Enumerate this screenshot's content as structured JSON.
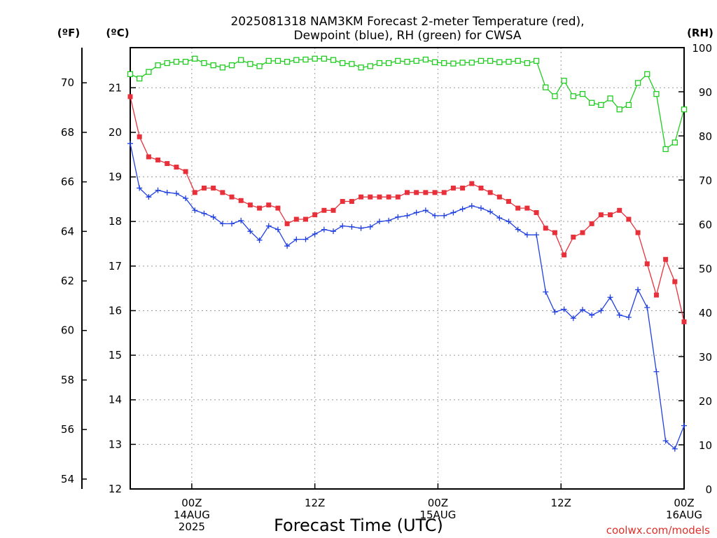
{
  "chart_data": {
    "type": "line",
    "title_line1": "2025081318 NAM3KM Forecast 2-meter Temperature (red),",
    "title_line2": "Dewpoint (blue), RH (green) for CWSA",
    "xlabel": "Forecast Time (UTC)",
    "credit": "coolwx.com/models",
    "units": {
      "fahrenheit": "(ºF)",
      "celsius": "(ºC)",
      "rh": "(RH)"
    },
    "celsius_axis": {
      "range": [
        12,
        21.9
      ],
      "ticks": [
        12,
        13,
        14,
        15,
        16,
        17,
        18,
        19,
        20,
        21
      ]
    },
    "fahrenheit_axis": {
      "range": [
        53.6,
        71.42
      ],
      "ticks": [
        54,
        56,
        58,
        60,
        62,
        64,
        66,
        68,
        70
      ]
    },
    "rh_axis": {
      "range": [
        0,
        100
      ],
      "ticks": [
        0,
        10,
        20,
        30,
        40,
        50,
        60,
        70,
        80,
        90,
        100
      ]
    },
    "x_range": [
      18,
      72
    ],
    "x_ticks": [
      {
        "hour": 24,
        "lines": [
          "00Z",
          "14AUG",
          "2025"
        ]
      },
      {
        "hour": 36,
        "lines": [
          "12Z"
        ]
      },
      {
        "hour": 48,
        "lines": [
          "00Z",
          "15AUG"
        ]
      },
      {
        "hour": 60,
        "lines": [
          "12Z"
        ]
      },
      {
        "hour": 72,
        "lines": [
          "00Z",
          "16AUG"
        ]
      }
    ],
    "grid": true,
    "series": [
      {
        "name": "Temperature",
        "axis": "celsius",
        "color": "#e8303a",
        "marker": "filled-square",
        "values": [
          20.8,
          19.9,
          19.45,
          19.38,
          19.3,
          19.22,
          19.12,
          18.65,
          18.75,
          18.75,
          18.65,
          18.55,
          18.47,
          18.37,
          18.3,
          18.37,
          18.3,
          17.95,
          18.05,
          18.05,
          18.15,
          18.25,
          18.25,
          18.45,
          18.45,
          18.55,
          18.55,
          18.55,
          18.55,
          18.55,
          18.65,
          18.65,
          18.65,
          18.65,
          18.65,
          18.75,
          18.75,
          18.85,
          18.75,
          18.65,
          18.55,
          18.45,
          18.3,
          18.3,
          18.2,
          17.85,
          17.75,
          17.25,
          17.65,
          17.75,
          17.95,
          18.15,
          18.15,
          18.25,
          18.05,
          17.75,
          17.05,
          16.35,
          17.15,
          16.65,
          15.75
        ]
      },
      {
        "name": "Dewpoint",
        "axis": "celsius",
        "color": "#2040e0",
        "marker": "plus",
        "values": [
          19.75,
          18.75,
          18.55,
          18.7,
          18.65,
          18.63,
          18.52,
          18.25,
          18.18,
          18.1,
          17.95,
          17.95,
          18.02,
          17.78,
          17.58,
          17.9,
          17.82,
          17.45,
          17.6,
          17.6,
          17.72,
          17.82,
          17.78,
          17.9,
          17.88,
          17.85,
          17.88,
          18.0,
          18.02,
          18.1,
          18.13,
          18.2,
          18.25,
          18.13,
          18.13,
          18.2,
          18.28,
          18.35,
          18.3,
          18.22,
          18.08,
          18.0,
          17.82,
          17.7,
          17.7,
          16.42,
          15.97,
          16.03,
          15.83,
          16.02,
          15.9,
          16.0,
          16.3,
          15.9,
          15.85,
          16.47,
          16.07,
          14.63,
          13.08,
          12.9,
          13.42
        ]
      },
      {
        "name": "RH",
        "axis": "rh",
        "color": "#20cc20",
        "marker": "open-square",
        "values": [
          94,
          93,
          94.5,
          96,
          96.5,
          96.8,
          96.8,
          97.5,
          96.5,
          96,
          95.5,
          96,
          97.2,
          96.3,
          95.8,
          97,
          97,
          96.8,
          97.2,
          97.3,
          97.5,
          97.5,
          97.2,
          96.5,
          96.3,
          95.5,
          95.8,
          96.5,
          96.5,
          97,
          96.8,
          97,
          97.3,
          96.7,
          96.5,
          96.4,
          96.6,
          96.6,
          97,
          97,
          96.7,
          96.8,
          97,
          96.5,
          97,
          91,
          89,
          92.5,
          89,
          89.5,
          87.5,
          87,
          88.5,
          86,
          87,
          92,
          94,
          89.5,
          77,
          78.5,
          86
        ]
      }
    ]
  }
}
